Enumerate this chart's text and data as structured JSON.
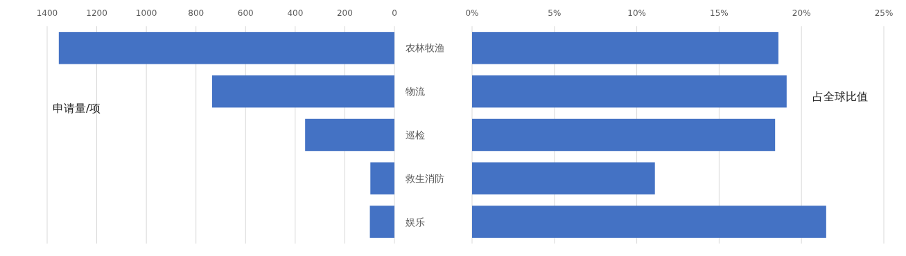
{
  "chart_data": [
    {
      "type": "bar",
      "orientation": "horizontal",
      "categories": [
        "农林牧渔",
        "物流",
        "巡检",
        "救生消防",
        "娱乐"
      ],
      "values": [
        1353,
        735,
        360,
        97,
        99
      ],
      "color": "#4472c4",
      "xlim": [
        1400,
        0
      ],
      "xticks": [
        1400,
        1200,
        1000,
        800,
        600,
        400,
        200,
        0
      ],
      "grid": "x",
      "annotations": [
        "申请量/项"
      ]
    },
    {
      "type": "bar",
      "orientation": "horizontal",
      "values": [
        18.6,
        19.1,
        18.4,
        11.1,
        21.5
      ],
      "color": "#4472c4",
      "xlim": [
        0,
        25
      ],
      "xticks": [
        {
          "value": 0,
          "label": "0%"
        },
        {
          "value": 5,
          "label": "5%"
        },
        {
          "value": 10,
          "label": "10%"
        },
        {
          "value": 15,
          "label": "15%"
        },
        {
          "value": 20,
          "label": "20%"
        },
        {
          "value": 25,
          "label": "25%"
        }
      ],
      "grid": "x",
      "tick_labels": "x",
      "annotations": [
        "占全球比值"
      ]
    }
  ]
}
